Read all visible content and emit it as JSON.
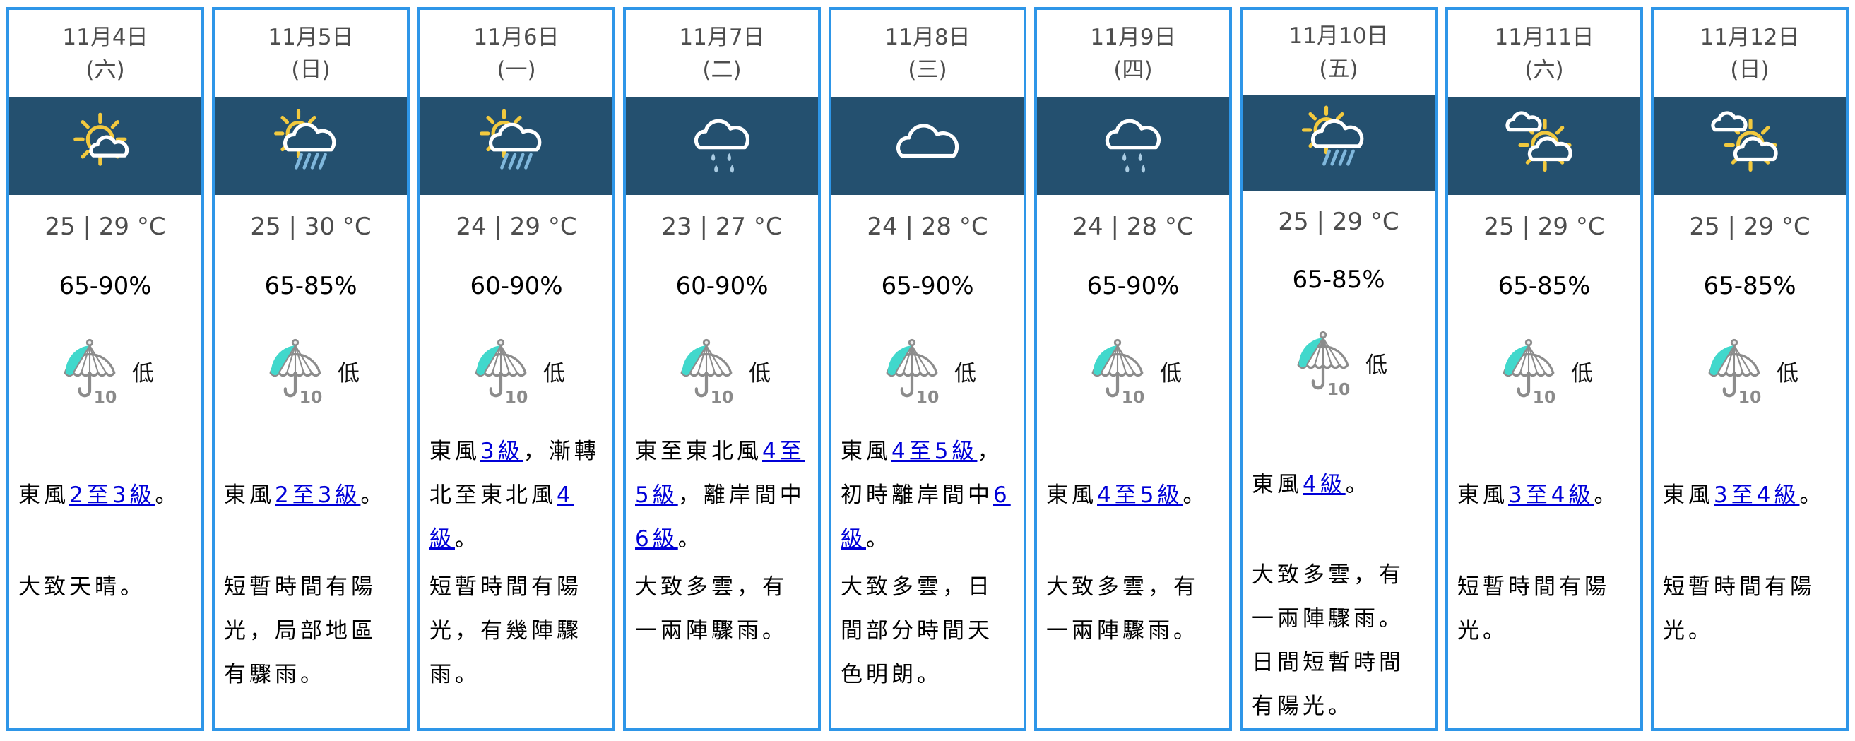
{
  "theme": {
    "card_border_color": "#2E96E8",
    "icon_band_color": "#24506F",
    "link_color": "#0000D8",
    "psr_teal": "#41D8CC",
    "umbrella_gray": "#8C8C8C",
    "sun_yellow": "#F2C93E",
    "cloud_white": "#FFFFFF",
    "rain_streak_blue": "#7FB7DC",
    "rain_drop_blue": "#A9CBE2"
  },
  "days": [
    {
      "date": "11月4日",
      "weekday": "(六)",
      "icon": "sun-with-cloud",
      "temperature": "25 | 29 °C",
      "humidity": "65-90%",
      "psr_value": "10",
      "psr_label": "低",
      "wind": [
        {
          "t": "東風"
        },
        {
          "t": "2至3級",
          "link": true
        },
        {
          "t": "。"
        }
      ],
      "description": "大致天晴。"
    },
    {
      "date": "11月5日",
      "weekday": "(日)",
      "icon": "sun-shower",
      "temperature": "25 | 30 °C",
      "humidity": "65-85%",
      "psr_value": "10",
      "psr_label": "低",
      "wind": [
        {
          "t": "東風"
        },
        {
          "t": "2至3級",
          "link": true
        },
        {
          "t": "。"
        }
      ],
      "description": "短暫時間有陽光，局部地區有驟雨。"
    },
    {
      "date": "11月6日",
      "weekday": "(一)",
      "icon": "sun-shower",
      "temperature": "24 | 29 °C",
      "humidity": "60-90%",
      "psr_value": "10",
      "psr_label": "低",
      "wind": [
        {
          "t": "東風"
        },
        {
          "t": "3級",
          "link": true
        },
        {
          "t": "，漸轉北至東北風"
        },
        {
          "t": "4級",
          "link": true
        },
        {
          "t": "。"
        }
      ],
      "description": "短暫時間有陽光，有幾陣驟雨。"
    },
    {
      "date": "11月7日",
      "weekday": "(二)",
      "icon": "rain",
      "temperature": "23 | 27 °C",
      "humidity": "60-90%",
      "psr_value": "10",
      "psr_label": "低",
      "wind": [
        {
          "t": "東至東北風"
        },
        {
          "t": "4至5級",
          "link": true
        },
        {
          "t": "，離岸間中"
        },
        {
          "t": "6級",
          "link": true
        },
        {
          "t": "。"
        }
      ],
      "description": "大致多雲，有一兩陣驟雨。"
    },
    {
      "date": "11月8日",
      "weekday": "(三)",
      "icon": "cloudy",
      "temperature": "24 | 28 °C",
      "humidity": "65-90%",
      "psr_value": "10",
      "psr_label": "低",
      "wind": [
        {
          "t": "東風"
        },
        {
          "t": "4至5級",
          "link": true
        },
        {
          "t": "，初時離岸間中"
        },
        {
          "t": "6級",
          "link": true
        },
        {
          "t": "。"
        }
      ],
      "description": "大致多雲，日間部分時間天色明朗。"
    },
    {
      "date": "11月9日",
      "weekday": "(四)",
      "icon": "rain",
      "temperature": "24 | 28 °C",
      "humidity": "65-90%",
      "psr_value": "10",
      "psr_label": "低",
      "wind": [
        {
          "t": "東風"
        },
        {
          "t": "4至5級",
          "link": true
        },
        {
          "t": "。"
        }
      ],
      "description": "大致多雲，有一兩陣驟雨。"
    },
    {
      "date": "11月10日",
      "weekday": "(五)",
      "icon": "sun-shower",
      "temperature": "25 | 29 °C",
      "humidity": "65-85%",
      "psr_value": "10",
      "psr_label": "低",
      "wind": [
        {
          "t": "東風"
        },
        {
          "t": "4級",
          "link": true
        },
        {
          "t": "。"
        }
      ],
      "description": "大致多雲，有一兩陣驟雨。日間短暫時間有陽光。"
    },
    {
      "date": "11月11日",
      "weekday": "(六)",
      "icon": "cloud-sun-cloud",
      "temperature": "25 | 29 °C",
      "humidity": "65-85%",
      "psr_value": "10",
      "psr_label": "低",
      "wind": [
        {
          "t": "東風"
        },
        {
          "t": "3至4級",
          "link": true
        },
        {
          "t": "。"
        }
      ],
      "description": "短暫時間有陽光。"
    },
    {
      "date": "11月12日",
      "weekday": "(日)",
      "icon": "cloud-sun-cloud",
      "temperature": "25 | 29 °C",
      "humidity": "65-85%",
      "psr_value": "10",
      "psr_label": "低",
      "wind": [
        {
          "t": "東風"
        },
        {
          "t": "3至4級",
          "link": true
        },
        {
          "t": "。"
        }
      ],
      "description": "短暫時間有陽光。"
    }
  ]
}
